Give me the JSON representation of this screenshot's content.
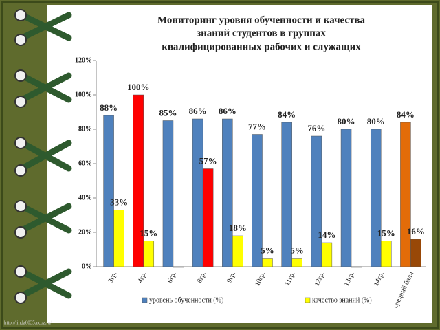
{
  "chart_data": {
    "type": "bar",
    "title": [
      "Мониторинг уровня обученности и качества",
      "знаний студентов в группах",
      "квалифицированных рабочих  и служащих"
    ],
    "categories": [
      "3гр.",
      "4гр.",
      "6гр.",
      "8гр.",
      "9гр.",
      "10гр.",
      "11гр.",
      "12гр.",
      "13гр.",
      "14гр.",
      "средний балл"
    ],
    "series": [
      {
        "name": "уровень обученности (%)",
        "color": "#4f81bd",
        "colors": [
          "#4f81bd",
          "#ff0000",
          "#4f81bd",
          "#4f81bd",
          "#4f81bd",
          "#4f81bd",
          "#4f81bd",
          "#4f81bd",
          "#4f81bd",
          "#4f81bd",
          "#e36c09"
        ],
        "values": [
          88,
          100,
          85,
          86,
          86,
          77,
          84,
          76,
          80,
          80,
          84
        ],
        "value_labels": [
          "88%",
          "100%",
          "85%",
          "86%",
          "86%",
          "77%",
          "84%",
          "76%",
          "80%",
          "80%",
          "84%"
        ]
      },
      {
        "name": "качество знаний (%)",
        "color": "#ffff00",
        "colors": [
          "#ffff00",
          "#ffff00",
          "#ffff00",
          "#ff0000",
          "#ffff00",
          "#ffff00",
          "#ffff00",
          "#ffff00",
          "#ffff00",
          "#ffff00",
          "#984807"
        ],
        "values": [
          33,
          15,
          0,
          57,
          18,
          5,
          5,
          14,
          0,
          15,
          16
        ],
        "value_labels": [
          "33%",
          "15%",
          null,
          "57%",
          "18%",
          "5%",
          "5%",
          "14%",
          null,
          "15%",
          "16%"
        ]
      }
    ],
    "ylim": [
      0,
      120
    ],
    "yticks": [
      {
        "value": 0,
        "label": "0%"
      },
      {
        "value": 20,
        "label": "20%"
      },
      {
        "value": 40,
        "label": "40%"
      },
      {
        "value": 60,
        "label": "60%"
      },
      {
        "value": 80,
        "label": "80%"
      },
      {
        "value": 100,
        "label": "100%"
      },
      {
        "value": 120,
        "label": "120%"
      }
    ],
    "grid": false,
    "legend": "bottom",
    "watermark": "http://linda6035.ucoz.ru/"
  }
}
